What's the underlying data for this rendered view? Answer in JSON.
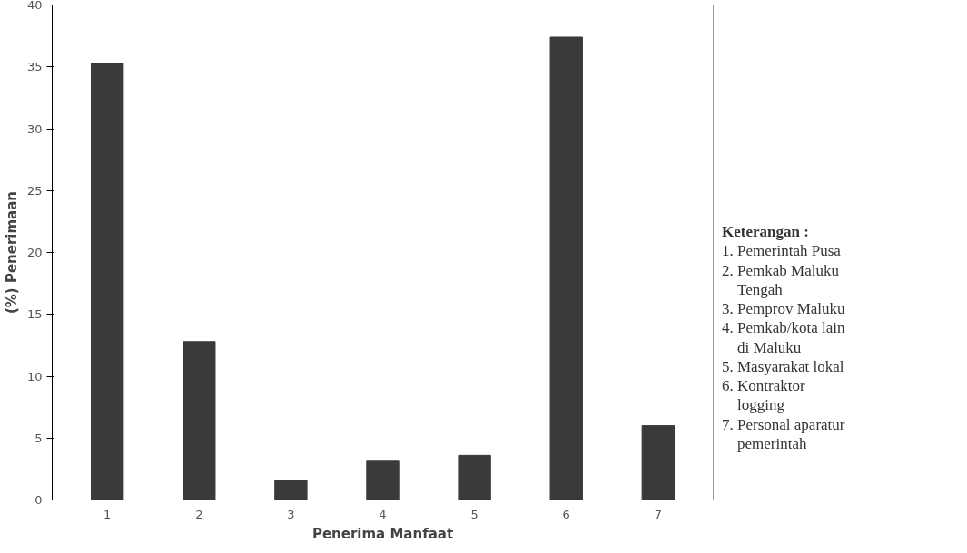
{
  "chart_data": {
    "type": "bar",
    "xlabel": "Penerima Manfaat",
    "ylabel": "(%) Penerimaan",
    "categories": [
      "1",
      "2",
      "3",
      "4",
      "5",
      "6",
      "7"
    ],
    "values": [
      35.3,
      12.8,
      1.6,
      3.2,
      3.6,
      37.4,
      6.0
    ],
    "color": "#3a3a3a",
    "ylim": [
      0,
      40
    ],
    "yticks": [
      0,
      5,
      10,
      15,
      20,
      25,
      30,
      35,
      40
    ],
    "grid": false,
    "annotations": [
      "Keterangan :",
      "1. Pemerintah  Pusa",
      "2. Pemkab Maluku\nTengah",
      "3. Pemprov Maluku",
      "4. Pemkab/kota lain\ndi Maluku",
      "5. Masyarakat lokal",
      "6. Kontraktor\nlogging",
      "7. Personal aparatur\npemerintah"
    ]
  }
}
